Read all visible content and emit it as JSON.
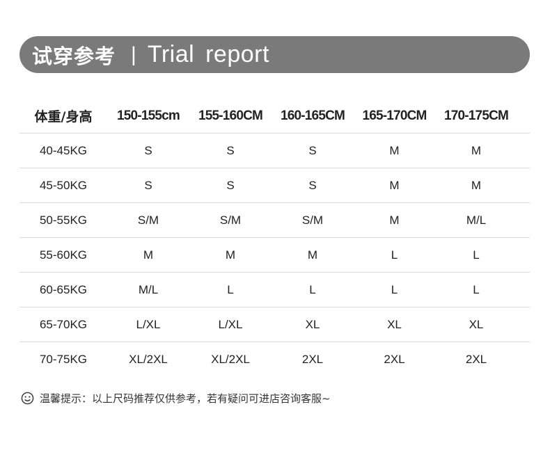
{
  "banner": {
    "title_cn": "试穿参考",
    "separator": "|",
    "title_en": "Trial report"
  },
  "table": {
    "headers": [
      "体重/身高",
      "150-155cm",
      "155-160CM",
      "160-165CM",
      "165-170CM",
      "170-175CM"
    ],
    "rows": [
      [
        "40-45KG",
        "S",
        "S",
        "S",
        "M",
        "M"
      ],
      [
        "45-50KG",
        "S",
        "S",
        "S",
        "M",
        "M"
      ],
      [
        "50-55KG",
        "S/M",
        "S/M",
        "S/M",
        "M",
        "M/L"
      ],
      [
        "55-60KG",
        "M",
        "M",
        "M",
        "L",
        "L"
      ],
      [
        "60-65KG",
        "M/L",
        "L",
        "L",
        "L",
        "L"
      ],
      [
        "65-70KG",
        "L/XL",
        "L/XL",
        "XL",
        "XL",
        "XL"
      ],
      [
        "70-75KG",
        "XL/2XL",
        "XL/2XL",
        "2XL",
        "2XL",
        "2XL"
      ]
    ]
  },
  "note": {
    "icon": "smiley-icon",
    "text": "温馨提示：以上尺码推荐仅供参考，若有疑问可进店咨询客服~"
  },
  "colors": {
    "banner": "#7a7a7a",
    "divider": "#dcdcdc"
  }
}
